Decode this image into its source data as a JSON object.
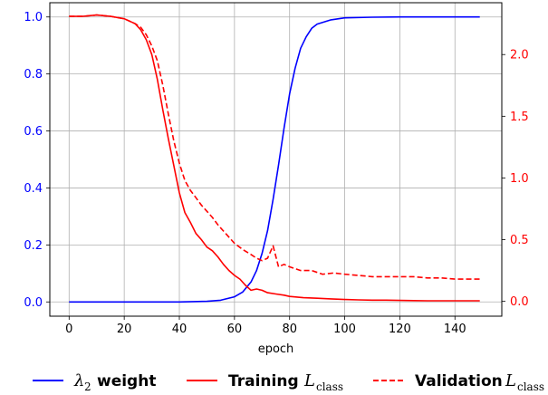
{
  "chart_data": {
    "type": "line",
    "title": "",
    "xlabel": "epoch",
    "xlim": [
      -7,
      157
    ],
    "x_ticks": [
      0,
      20,
      40,
      60,
      80,
      100,
      120,
      140
    ],
    "left_axis": {
      "ylim": [
        -0.05,
        1.05
      ],
      "ticks": [
        "0.0",
        "0.2",
        "0.4",
        "0.6",
        "0.8",
        "1.0"
      ],
      "tick_values": [
        0,
        0.2,
        0.4,
        0.6,
        0.8,
        1.0
      ],
      "color": "#0000ff"
    },
    "right_axis": {
      "ylim": [
        -0.12,
        2.42
      ],
      "ticks": [
        "0.0",
        "0.5",
        "1.0",
        "1.5",
        "2.0"
      ],
      "tick_values": [
        0,
        0.5,
        1.0,
        1.5,
        2.0
      ],
      "color": "#ff0000"
    },
    "grid": true,
    "legend_position": "bottom",
    "series": [
      {
        "name": "weight",
        "legend_math": "λ",
        "legend_sub": "2",
        "axis": "left",
        "color": "#0000ff",
        "style": "solid",
        "x": [
          0,
          10,
          20,
          30,
          40,
          50,
          55,
          60,
          63,
          66,
          68,
          70,
          72,
          74,
          76,
          78,
          80,
          82,
          84,
          86,
          88,
          90,
          95,
          100,
          110,
          120,
          130,
          140,
          149
        ],
        "y": [
          0,
          0,
          0,
          0,
          0,
          0.002,
          0.006,
          0.018,
          0.035,
          0.07,
          0.11,
          0.17,
          0.25,
          0.36,
          0.48,
          0.61,
          0.73,
          0.82,
          0.89,
          0.93,
          0.96,
          0.975,
          0.99,
          0.997,
          0.999,
          1.0,
          1.0,
          1.0,
          1.0
        ]
      },
      {
        "name": "Training",
        "legend_math": "L",
        "legend_sub": "class",
        "axis": "right",
        "color": "#ff0000",
        "style": "solid",
        "x": [
          0,
          5,
          10,
          15,
          20,
          24,
          26,
          28,
          30,
          32,
          34,
          36,
          38,
          40,
          42,
          44,
          46,
          48,
          50,
          52,
          54,
          56,
          58,
          60,
          62,
          64,
          66,
          68,
          70,
          72,
          75,
          78,
          80,
          85,
          90,
          95,
          100,
          105,
          110,
          115,
          120,
          125,
          130,
          135,
          140,
          145,
          149
        ],
        "y": [
          2.31,
          2.31,
          2.32,
          2.31,
          2.29,
          2.25,
          2.2,
          2.12,
          2.0,
          1.8,
          1.55,
          1.32,
          1.1,
          0.88,
          0.72,
          0.64,
          0.55,
          0.5,
          0.44,
          0.41,
          0.36,
          0.3,
          0.25,
          0.21,
          0.18,
          0.13,
          0.09,
          0.1,
          0.09,
          0.07,
          0.06,
          0.05,
          0.04,
          0.03,
          0.025,
          0.02,
          0.015,
          0.012,
          0.01,
          0.01,
          0.008,
          0.006,
          0.005,
          0.005,
          0.005,
          0.005,
          0.005
        ]
      },
      {
        "name": "Validation",
        "legend_math": "L",
        "legend_sub": "class",
        "axis": "right",
        "color": "#ff0000",
        "style": "dashed",
        "x": [
          0,
          5,
          10,
          15,
          20,
          24,
          26,
          28,
          30,
          32,
          34,
          36,
          38,
          40,
          42,
          44,
          46,
          48,
          50,
          52,
          54,
          56,
          58,
          60,
          63,
          66,
          68,
          70,
          72,
          74,
          76,
          78,
          80,
          84,
          88,
          92,
          96,
          100,
          105,
          110,
          115,
          120,
          125,
          130,
          135,
          140,
          145,
          149
        ],
        "y": [
          2.31,
          2.31,
          2.32,
          2.31,
          2.29,
          2.25,
          2.22,
          2.16,
          2.07,
          1.95,
          1.75,
          1.52,
          1.3,
          1.12,
          0.98,
          0.9,
          0.84,
          0.78,
          0.73,
          0.68,
          0.62,
          0.57,
          0.52,
          0.47,
          0.42,
          0.38,
          0.35,
          0.33,
          0.35,
          0.45,
          0.28,
          0.3,
          0.28,
          0.25,
          0.25,
          0.22,
          0.23,
          0.22,
          0.21,
          0.2,
          0.2,
          0.2,
          0.2,
          0.19,
          0.19,
          0.18,
          0.18,
          0.18
        ]
      }
    ]
  }
}
